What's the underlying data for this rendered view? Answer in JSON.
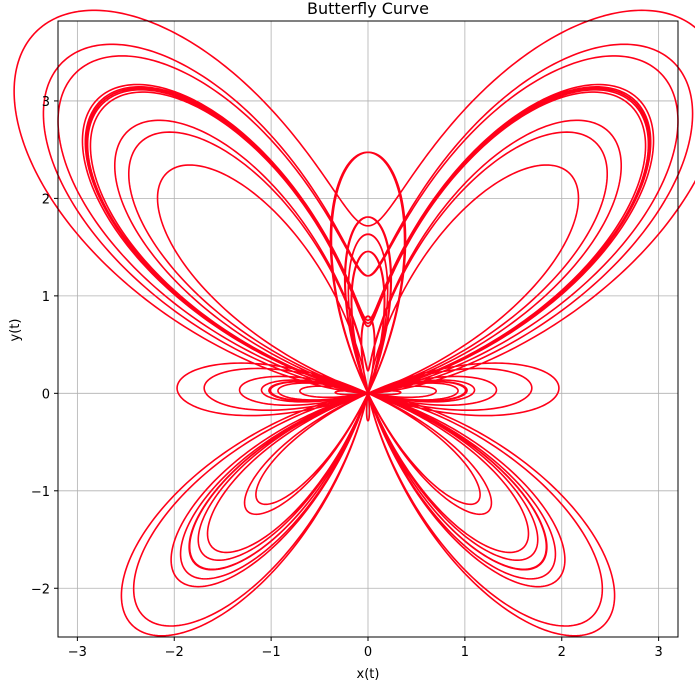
{
  "chart_data": {
    "type": "line",
    "title": "Butterfly Curve",
    "xlabel": "x(t)",
    "ylabel": "y(t)",
    "xlim": [
      -3.2,
      3.2
    ],
    "ylim": [
      -2.5,
      3.82
    ],
    "x_ticks": [
      -3,
      -2,
      -1,
      0,
      1,
      2,
      3
    ],
    "y_ticks": [
      -2,
      -1,
      0,
      1,
      2,
      3
    ],
    "x_tick_labels": [
      "−3",
      "−2",
      "−1",
      "0",
      "1",
      "2",
      "3"
    ],
    "y_tick_labels": [
      "−2",
      "−1",
      "0",
      "1",
      "2",
      "3"
    ],
    "grid": true,
    "legend": "none",
    "series": [
      {
        "function": "x = sin(t)*(e^cos(t) - 2cos(4t) - sin(t/12)^5), y = cos(t)*(e^cos(t) - 2cos(4t) - sin(t/12)^5)",
        "t_range": [
          0,
          75.4
        ],
        "color": "#ff0019"
      }
    ]
  }
}
